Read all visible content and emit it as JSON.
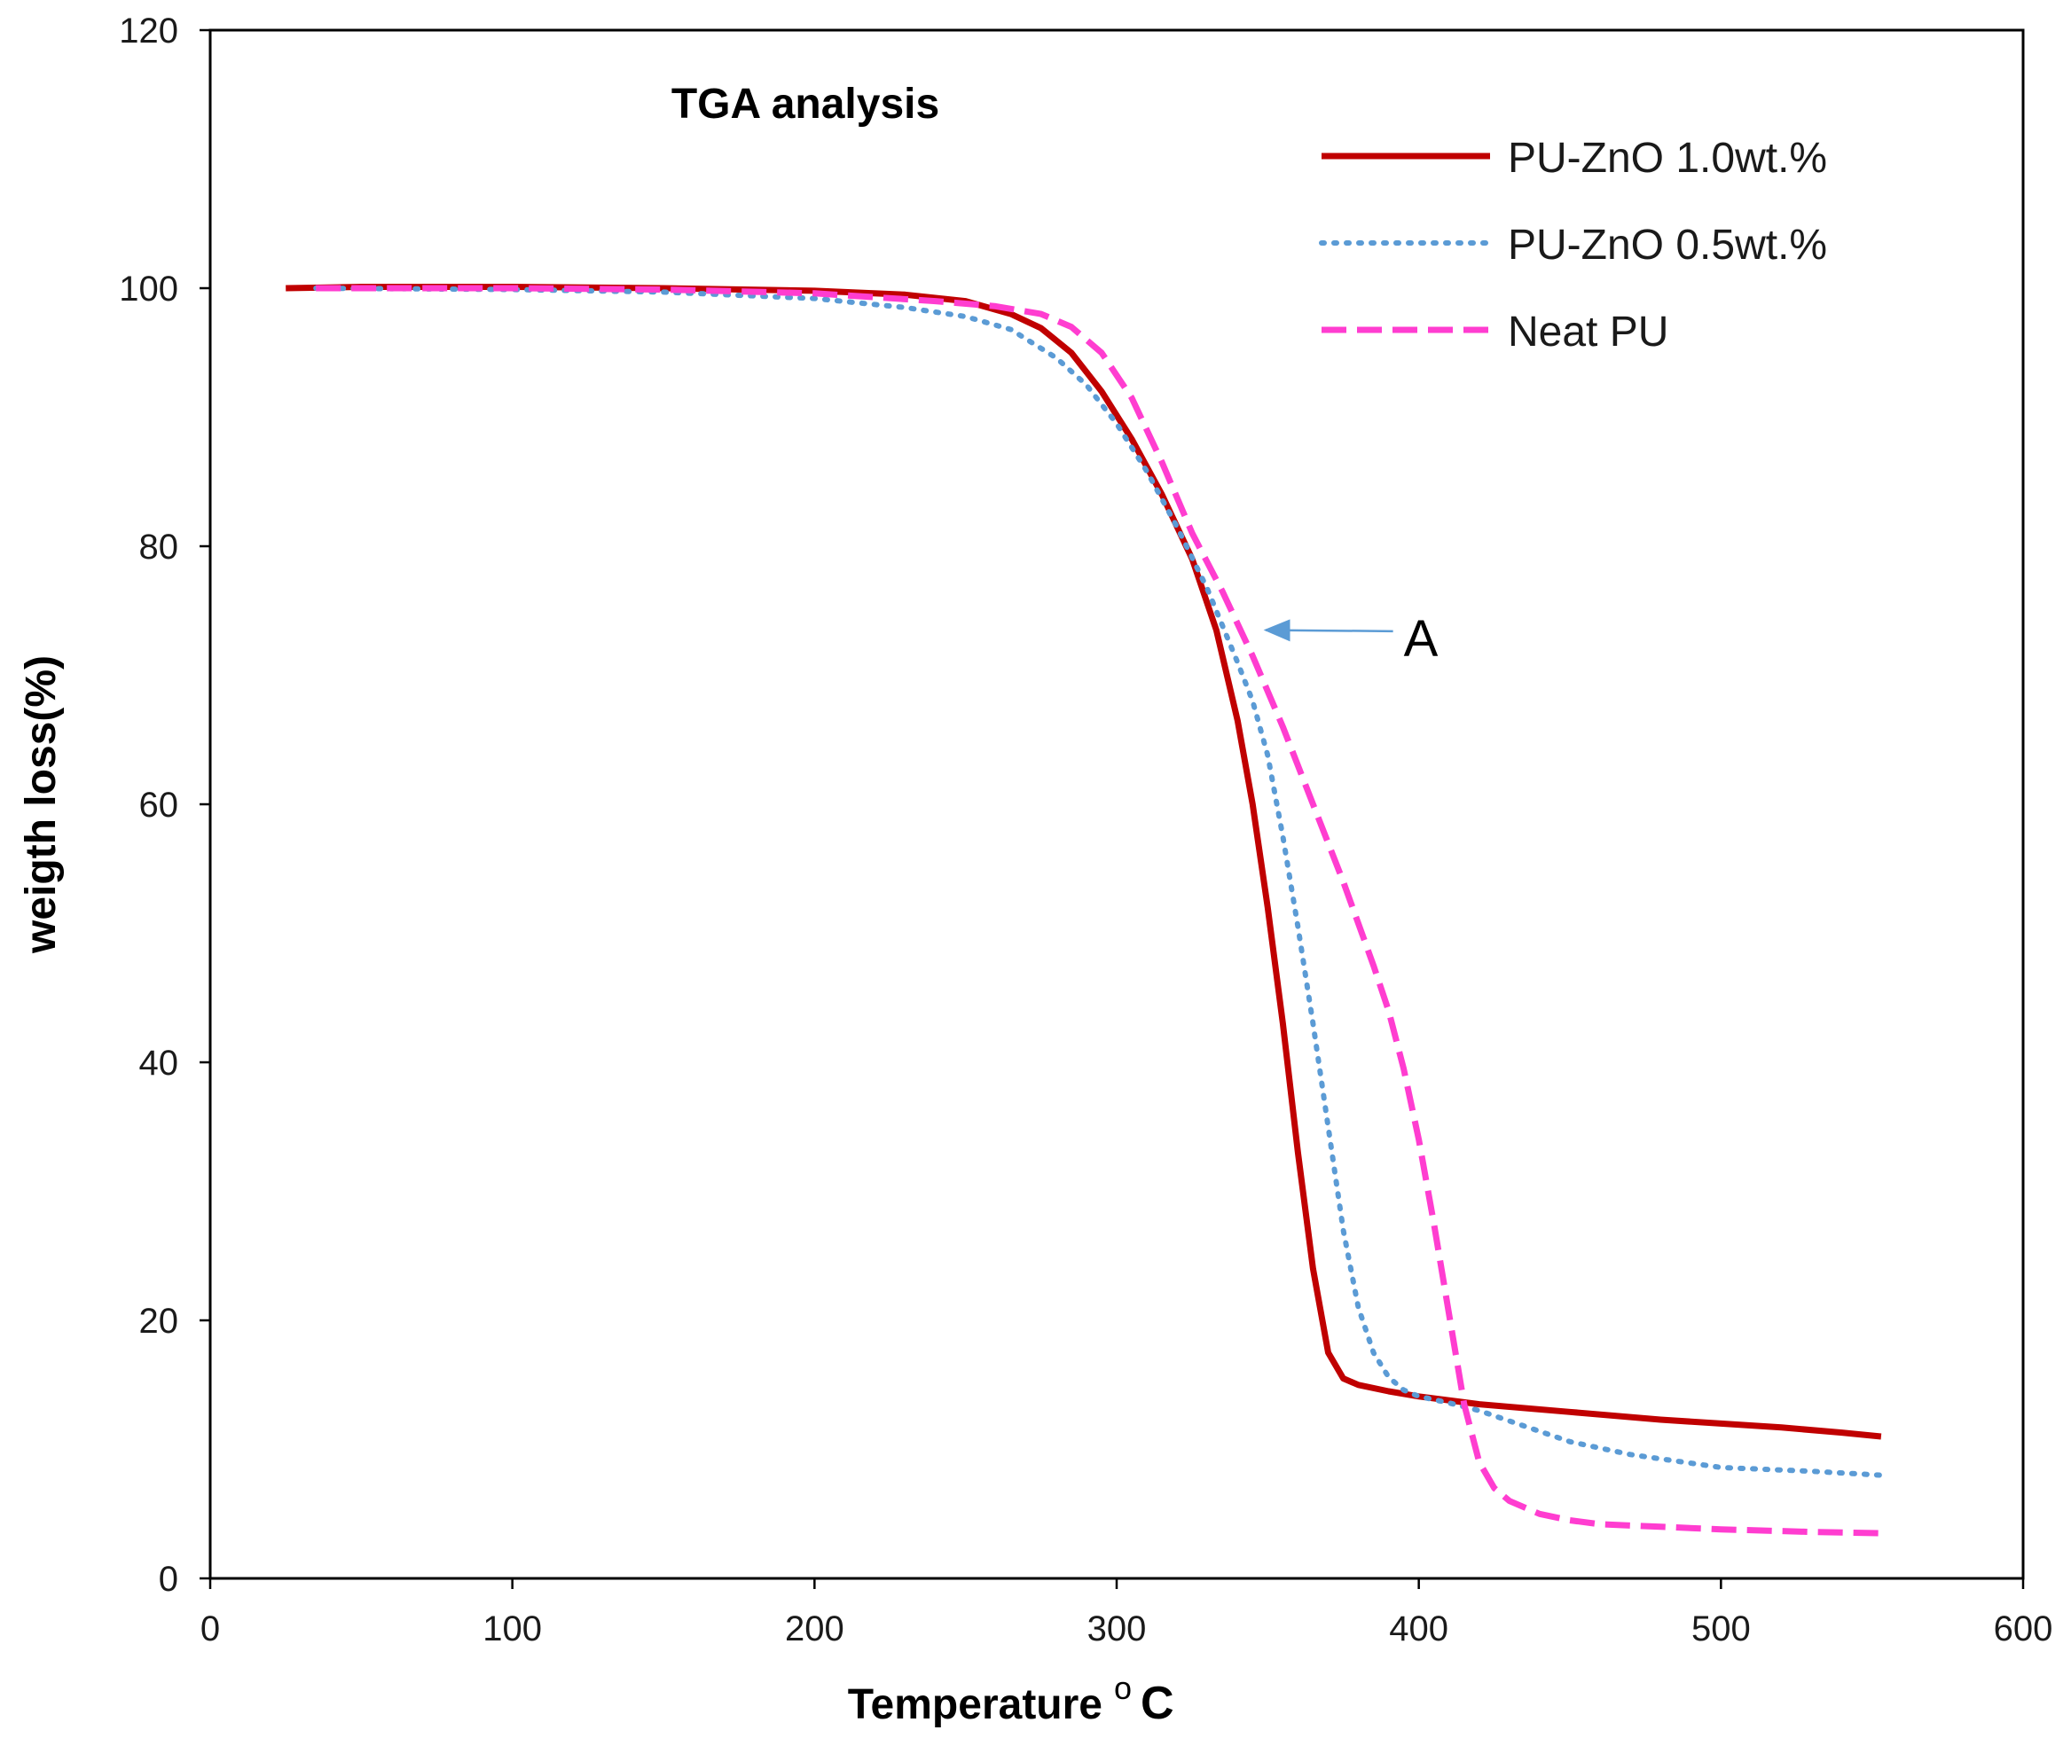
{
  "chart_data": {
    "type": "line",
    "title": "TGA analysis",
    "xlabel": "Temperature",
    "xlabel_unit_sup": "o",
    "xlabel_unit": "C",
    "ylabel": "weigth loss(%)",
    "xlim": [
      0,
      600
    ],
    "ylim": [
      0,
      120
    ],
    "xticks": [
      "0",
      "100",
      "200",
      "300",
      "400",
      "500",
      "600"
    ],
    "yticks": [
      "0",
      "20",
      "40",
      "60",
      "80",
      "100",
      "120"
    ],
    "grid": false,
    "legend_position": "top-right",
    "series": [
      {
        "name": "PU-ZnO 1.0wt.%",
        "color": "#c00000",
        "style": "solid",
        "x": [
          25,
          50,
          100,
          150,
          200,
          230,
          250,
          265,
          275,
          285,
          295,
          305,
          315,
          325,
          333,
          340,
          345,
          350,
          355,
          360,
          365,
          370,
          375,
          380,
          390,
          400,
          420,
          450,
          480,
          500,
          520,
          540,
          553
        ],
        "y": [
          100.0,
          100.1,
          100.1,
          100.0,
          99.8,
          99.5,
          99.0,
          98.0,
          96.9,
          95.0,
          92.0,
          88.3,
          84.0,
          79.0,
          73.5,
          66.5,
          60.0,
          52.0,
          43.0,
          33.0,
          24.0,
          17.5,
          15.5,
          15.0,
          14.5,
          14.1,
          13.5,
          12.9,
          12.3,
          12.0,
          11.7,
          11.3,
          11.0
        ]
      },
      {
        "name": "PU-ZnO 0.5wt.%",
        "color": "#5b9bd5",
        "style": "dotted",
        "x": [
          35,
          100,
          150,
          200,
          230,
          250,
          265,
          280,
          290,
          300,
          310,
          320,
          330,
          340,
          345,
          350,
          355,
          360,
          365,
          370,
          375,
          380,
          385,
          390,
          395,
          400,
          410,
          420,
          430,
          450,
          470,
          500,
          530,
          553
        ],
        "y": [
          100.0,
          99.9,
          99.7,
          99.2,
          98.5,
          97.8,
          96.8,
          94.6,
          92.5,
          89.5,
          85.8,
          81.5,
          76.7,
          71.0,
          68.0,
          63.8,
          57.5,
          50.5,
          43.0,
          35.0,
          27.0,
          21.0,
          17.5,
          15.6,
          14.6,
          14.1,
          13.6,
          13.0,
          12.2,
          10.6,
          9.6,
          8.6,
          8.3,
          8.0
        ]
      },
      {
        "name": "Neat PU",
        "color": "#ff3dd0",
        "style": "dashed",
        "x": [
          35,
          100,
          150,
          200,
          240,
          260,
          275,
          285,
          295,
          305,
          315,
          325,
          335,
          345,
          355,
          365,
          375,
          385,
          390,
          395,
          400,
          405,
          410,
          415,
          420,
          425,
          430,
          440,
          450,
          460,
          480,
          500,
          530,
          553
        ],
        "y": [
          100.0,
          100.0,
          99.9,
          99.6,
          99.0,
          98.6,
          98.0,
          97.0,
          95.0,
          91.5,
          86.5,
          81.0,
          76.5,
          71.5,
          66.0,
          60.0,
          54.0,
          47.5,
          44.0,
          39.5,
          34.0,
          27.5,
          20.5,
          13.5,
          9.0,
          7.0,
          6.0,
          5.0,
          4.5,
          4.2,
          4.0,
          3.8,
          3.6,
          3.5
        ]
      }
    ],
    "annotations": [
      {
        "text": "A",
        "arrow_to": [
          347,
          73.5
        ],
        "text_at": [
          395,
          73
        ]
      }
    ]
  }
}
